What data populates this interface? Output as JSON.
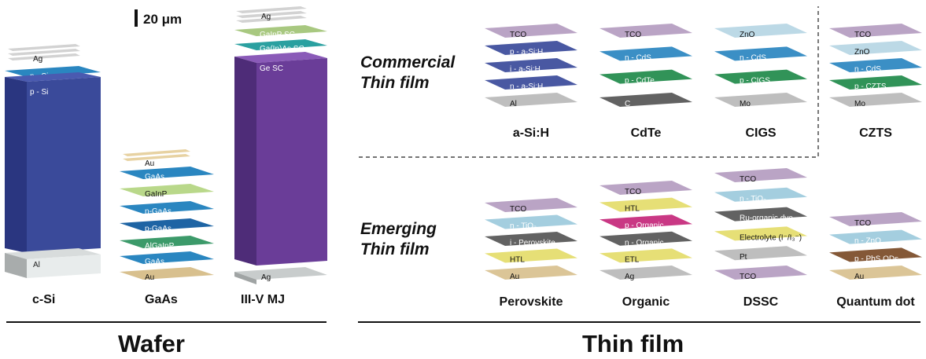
{
  "scale_bar": "20 μm",
  "sections": {
    "wafer": "Wafer",
    "thin_film": "Thin film"
  },
  "categories": {
    "commercial_line1": "Commercial",
    "commercial_line2": "Thin film",
    "emerging_line1": "Emerging",
    "emerging_line2": "Thin film"
  },
  "colors": {
    "navy": "#3a4a9a",
    "blue": "#2a86c0",
    "green": "#1f8a4a",
    "grey": "#b9b9b9",
    "tco": "#b49cc0",
    "yellow": "#e4dc6a",
    "tan": "#d8c08e",
    "purple": "#6a3d98",
    "magenta": "#c4277a",
    "dark": "#555555",
    "ltblue": "#9ccadc",
    "brown": "#7a4a26"
  },
  "wafer": {
    "csi": {
      "name": "c-Si",
      "layers": [
        "Ag",
        "n - Si",
        "p - Si",
        "Al"
      ]
    },
    "gaas": {
      "name": "GaAs",
      "layers": [
        "Au",
        "GaAs",
        "GaInP",
        "n-GaAs",
        "p-GaAs",
        "AlGaInP",
        "GaAs",
        "Au"
      ]
    },
    "mj": {
      "name": "III-V MJ",
      "layers": [
        "Ag",
        "GaInP SC",
        "Ga(In)As SC",
        "Ge SC",
        "Ag"
      ]
    }
  },
  "commercial": [
    {
      "name": "a-Si:H",
      "layers": [
        "TCO",
        "p - a-Si:H",
        "i - a-Si:H",
        "n - a-Si:H",
        "Al"
      ]
    },
    {
      "name": "CdTe",
      "layers": [
        "TCO",
        "n - CdS",
        "p - CdTe",
        "C"
      ]
    },
    {
      "name": "CIGS",
      "layers": [
        "ZnO",
        "n - CdS",
        "p - CIGS",
        "Mo"
      ]
    },
    {
      "name": "CZTS",
      "layers": [
        "TCO",
        "ZnO",
        "n - CdS",
        "p - CZTS",
        "Mo"
      ]
    }
  ],
  "emerging": [
    {
      "name": "Perovskite",
      "layers": [
        "TCO",
        "n - TiO₂",
        "i - Perovskite",
        "HTL",
        "Au"
      ]
    },
    {
      "name": "Organic",
      "layers": [
        "TCO",
        "HTL",
        "p - Organic",
        "n - Organic",
        "ETL",
        "Ag"
      ]
    },
    {
      "name": "DSSC",
      "layers": [
        "TCO",
        "n - TiO₂",
        "Ru-organic dye",
        "Electrolyte (I⁻/I₃⁻)",
        "Pt",
        "TCO"
      ]
    },
    {
      "name": "Quantum dot",
      "layers": [
        "TCO",
        "n - ZnO",
        "p - PbS QDs",
        "Au"
      ]
    }
  ]
}
